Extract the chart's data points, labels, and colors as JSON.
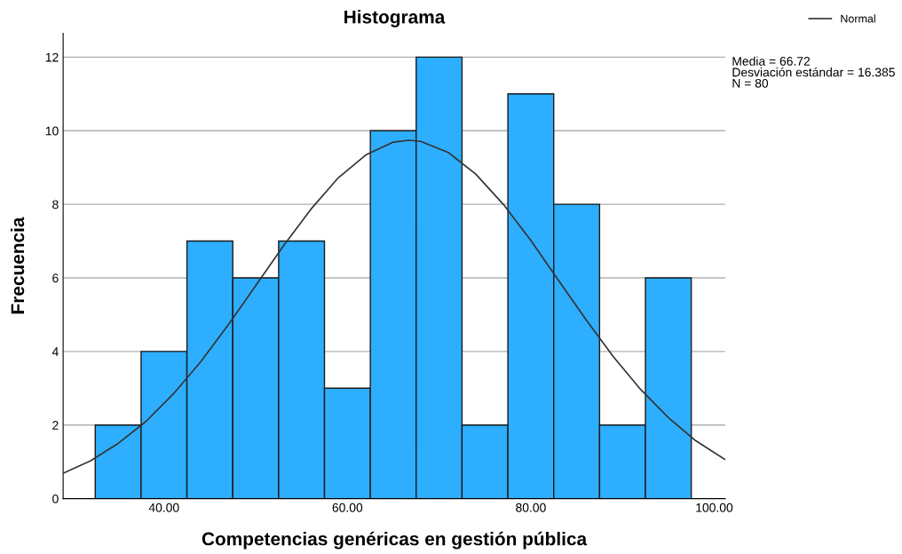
{
  "chart_data": {
    "type": "histogram",
    "title": "Histograma",
    "xlabel": "Competencias genéricas en gestión pública",
    "ylabel": "Frecuencia",
    "series": [
      {
        "color": "#2eaeff",
        "bins": [
          32.5,
          37.5,
          42.5,
          47.5,
          52.5,
          57.5,
          62.5,
          67.5,
          72.5,
          77.5,
          82.5,
          87.5,
          92.5,
          97.5
        ],
        "values": [
          2,
          4,
          7,
          6,
          7,
          3,
          10,
          12,
          2,
          11,
          8,
          2,
          6
        ]
      },
      {
        "type": "line",
        "name": "Normal",
        "color": "#333333",
        "x": [
          29,
          32,
          35,
          38,
          41,
          44,
          47,
          50,
          53,
          56,
          59,
          62,
          65,
          66.72,
          68,
          71,
          74,
          77,
          80,
          83,
          86,
          89,
          92,
          95,
          98,
          101.2
        ],
        "values": [
          0.69,
          1.03,
          1.5,
          2.09,
          2.84,
          3.72,
          4.72,
          5.79,
          6.86,
          7.86,
          8.72,
          9.34,
          9.69,
          9.74,
          9.71,
          9.41,
          8.82,
          8.0,
          7.02,
          5.94,
          4.87,
          3.86,
          2.96,
          2.2,
          1.57,
          1.06
        ]
      }
    ],
    "annotations": [
      "Media = 66.72\nDesviación estándar = 16.385\nN = 80"
    ],
    "xlim": [
      29,
      101.2
    ],
    "ylim": [
      0,
      12.65
    ],
    "xticks": [
      {
        "value": 40,
        "label": "40.00"
      },
      {
        "value": 60,
        "label": "60.00"
      },
      {
        "value": 80,
        "label": "80.00"
      },
      {
        "value": 100,
        "label": "100.00"
      }
    ],
    "yticks": [
      0,
      2,
      4,
      6,
      8,
      10,
      12
    ],
    "grid": "y",
    "legend": "top right"
  }
}
